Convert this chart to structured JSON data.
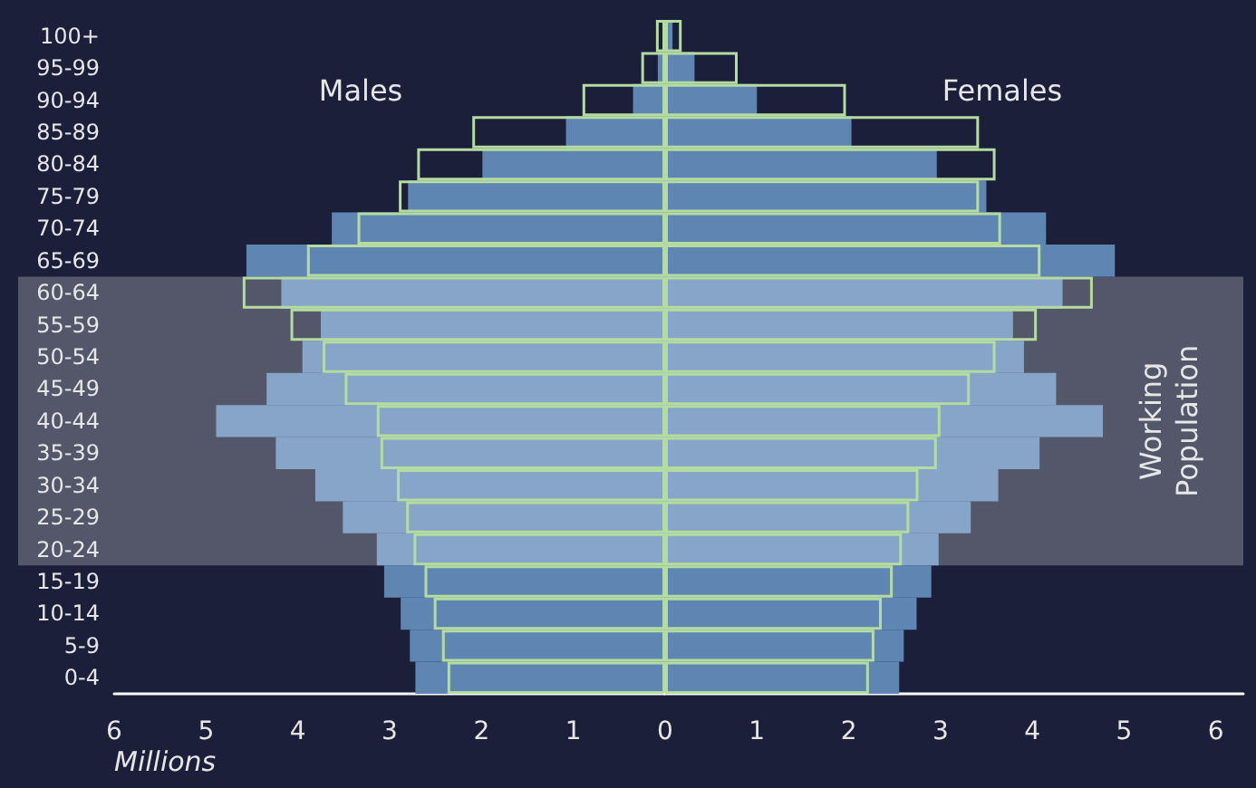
{
  "chart_data": [
    {
      "type": "bar",
      "orientation": "horizontal",
      "xlabel": "Millions",
      "categories": [
        "100+",
        "95-99",
        "90-94",
        "85-89",
        "80-84",
        "75-79",
        "70-74",
        "65-69",
        "60-64",
        "55-59",
        "50-54",
        "45-49",
        "40-44",
        "35-39",
        "30-34",
        "25-29",
        "20-24",
        "15-19",
        "10-14",
        "5-9",
        "0-4"
      ],
      "series": [
        {
          "values": [
            null,
            0.08,
            0.35,
            1.08,
            1.99,
            2.8,
            3.63,
            4.56,
            4.18,
            3.75,
            3.95,
            4.34,
            4.89,
            4.24,
            3.81,
            3.51,
            3.14,
            3.06,
            2.88,
            2.78,
            2.72
          ],
          "colors": [
            "#5f86b3",
            "#5f86b3",
            "#5f86b3",
            "#5f86b3",
            "#5f86b3",
            "#5f86b3",
            "#5f86b3",
            "#5f86b3",
            "#87a5c8",
            "#87a5c8",
            "#87a5c8",
            "#87a5c8",
            "#87a5c8",
            "#87a5c8",
            "#87a5c8",
            "#87a5c8",
            "#87a5c8",
            "#5f86b3",
            "#5f86b3",
            "#5f86b3",
            "#5f86b3"
          ]
        },
        {
          "values": [
            0.1,
            0.26,
            0.9,
            2.1,
            2.7,
            2.9,
            3.35,
            3.9,
            4.6,
            4.08,
            3.73,
            3.49,
            3.14,
            3.1,
            2.92,
            2.82,
            2.74,
            2.62,
            2.52,
            2.43,
            2.37
          ],
          "color": "#b5dca0"
        }
      ],
      "xlim": [
        6,
        0
      ],
      "xticks": [
        6,
        5,
        4,
        3,
        2,
        1
      ],
      "bands": [
        {
          "axis": "y",
          "from": "60-64",
          "to": "20-24",
          "color": "#545669"
        }
      ],
      "annotations": [
        "Males"
      ],
      "grid": false
    },
    {
      "type": "bar",
      "orientation": "horizontal",
      "categories": [
        "100+",
        "95-99",
        "90-94",
        "85-89",
        "80-84",
        "75-79",
        "70-74",
        "65-69",
        "60-64",
        "55-59",
        "50-54",
        "45-49",
        "40-44",
        "35-39",
        "30-34",
        "25-29",
        "20-24",
        "15-19",
        "10-14",
        "5-9",
        "0-4"
      ],
      "series": [
        {
          "values": [
            0.08,
            0.32,
            1.0,
            2.03,
            2.96,
            3.5,
            4.15,
            4.9,
            4.33,
            3.79,
            3.91,
            4.26,
            4.77,
            4.08,
            3.63,
            3.33,
            2.98,
            2.9,
            2.74,
            2.6,
            2.55
          ],
          "colors": [
            "#5f86b3",
            "#5f86b3",
            "#5f86b3",
            "#5f86b3",
            "#5f86b3",
            "#5f86b3",
            "#5f86b3",
            "#5f86b3",
            "#87a5c8",
            "#87a5c8",
            "#87a5c8",
            "#87a5c8",
            "#87a5c8",
            "#87a5c8",
            "#87a5c8",
            "#87a5c8",
            "#87a5c8",
            "#5f86b3",
            "#5f86b3",
            "#5f86b3",
            "#5f86b3"
          ]
        },
        {
          "values": [
            0.18,
            0.79,
            1.97,
            3.42,
            3.6,
            3.42,
            3.66,
            4.09,
            4.66,
            4.05,
            3.6,
            3.32,
            3.0,
            2.96,
            2.76,
            2.66,
            2.58,
            2.48,
            2.36,
            2.28,
            2.22
          ],
          "color": "#b5dca0"
        }
      ],
      "xlim": [
        0,
        6.3
      ],
      "xticks": [
        0,
        1,
        2,
        3,
        4,
        5,
        6
      ],
      "bands": [
        {
          "axis": "y",
          "from": "60-64",
          "to": "20-24",
          "label": "Working Population",
          "color": "#545669"
        }
      ],
      "annotations": [
        "Females"
      ],
      "tick_labels": "x",
      "grid": false
    }
  ]
}
